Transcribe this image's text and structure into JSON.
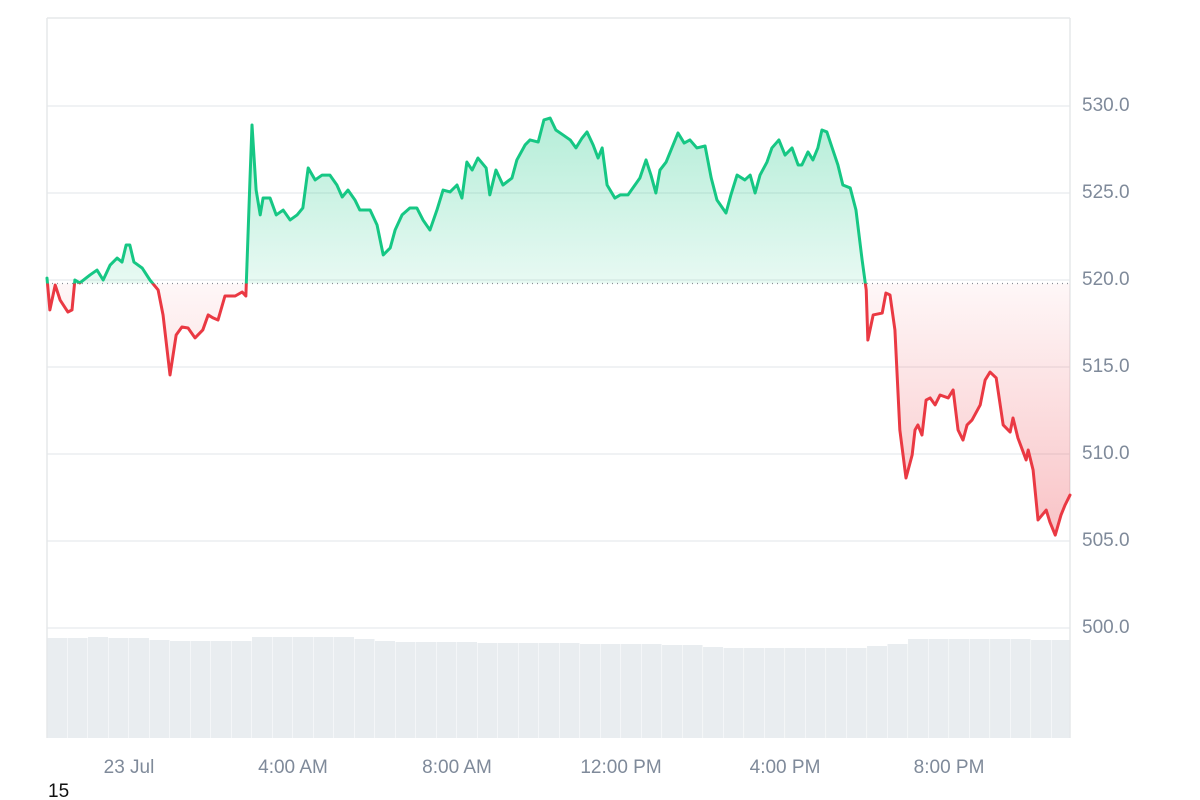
{
  "chart_data": {
    "type": "line",
    "footnote": "15",
    "baseline": 519.8,
    "up_color": "#16c784",
    "down_color": "#ea3943",
    "grid": true,
    "xlim": [
      -2,
      22.95
    ],
    "xticks": [
      {
        "value": 0,
        "label": "23 Jul"
      },
      {
        "value": 4,
        "label": "4:00 AM"
      },
      {
        "value": 8,
        "label": "8:00 AM"
      },
      {
        "value": 12,
        "label": "12:00 PM"
      },
      {
        "value": 16,
        "label": "4:00 PM"
      },
      {
        "value": 20,
        "label": "8:00 PM"
      }
    ],
    "ylim": [
      500,
      535
    ],
    "yticks": [
      {
        "value": 500,
        "label": "500.0"
      },
      {
        "value": 505,
        "label": "505.0"
      },
      {
        "value": 510,
        "label": "510.0"
      },
      {
        "value": 515,
        "label": "515.0"
      },
      {
        "value": 520,
        "label": "520.0"
      },
      {
        "value": 525,
        "label": "525.0"
      },
      {
        "value": 530,
        "label": "530.0"
      }
    ],
    "x": [
      -2.0,
      -1.93,
      -1.8,
      -1.68,
      -1.49,
      -1.39,
      -1.32,
      -1.2,
      -0.95,
      -0.78,
      -0.63,
      -0.46,
      -0.29,
      -0.17,
      -0.07,
      0.02,
      0.12,
      0.32,
      0.51,
      0.71,
      0.83,
      1.0,
      1.15,
      1.29,
      1.44,
      1.61,
      1.8,
      1.93,
      2.05,
      2.17,
      2.34,
      2.59,
      2.76,
      2.85,
      2.95,
      3.0,
      3.1,
      3.2,
      3.27,
      3.44,
      3.59,
      3.76,
      3.93,
      4.1,
      4.24,
      4.37,
      4.54,
      4.71,
      4.9,
      5.07,
      5.2,
      5.34,
      5.51,
      5.63,
      5.88,
      6.05,
      6.2,
      6.37,
      6.49,
      6.66,
      6.85,
      7.02,
      7.17,
      7.34,
      7.51,
      7.66,
      7.83,
      8.0,
      8.12,
      8.24,
      8.37,
      8.51,
      8.71,
      8.8,
      8.95,
      9.12,
      9.34,
      9.46,
      9.66,
      9.78,
      9.98,
      10.12,
      10.27,
      10.41,
      10.59,
      10.76,
      10.9,
      11.05,
      11.17,
      11.32,
      11.44,
      11.54,
      11.66,
      11.85,
      11.98,
      12.17,
      12.34,
      12.46,
      12.61,
      12.73,
      12.85,
      12.95,
      13.1,
      13.24,
      13.39,
      13.54,
      13.68,
      13.85,
      14.05,
      14.2,
      14.34,
      14.56,
      14.68,
      14.83,
      15.02,
      15.15,
      15.27,
      15.39,
      15.56,
      15.68,
      15.85,
      16.0,
      16.17,
      16.32,
      16.41,
      16.56,
      16.68,
      16.8,
      16.9,
      17.02,
      17.15,
      17.29,
      17.41,
      17.59,
      17.73,
      17.88,
      17.98,
      18.02,
      18.15,
      18.37,
      18.46,
      18.56,
      18.68,
      18.8,
      18.95,
      19.1,
      19.17,
      19.24,
      19.34,
      19.44,
      19.54,
      19.66,
      19.78,
      19.98,
      20.1,
      20.22,
      20.34,
      20.44,
      20.56,
      20.76,
      20.88,
      21.0,
      21.15,
      21.32,
      21.49,
      21.56,
      21.68,
      21.88,
      21.93,
      22.05,
      22.17,
      22.37,
      22.46,
      22.59,
      22.73,
      22.83,
      22.95
    ],
    "values": [
      520.11,
      518.28,
      519.71,
      518.85,
      518.16,
      518.28,
      520.0,
      519.83,
      520.29,
      520.57,
      520.0,
      520.86,
      521.26,
      521.03,
      522.01,
      522.01,
      521.03,
      520.69,
      520.0,
      519.43,
      517.99,
      514.54,
      516.84,
      517.3,
      517.24,
      516.67,
      517.13,
      517.99,
      517.82,
      517.7,
      519.08,
      519.08,
      519.31,
      519.08,
      525.75,
      528.91,
      525.17,
      523.74,
      524.71,
      524.71,
      523.74,
      524.02,
      523.45,
      523.74,
      524.14,
      526.44,
      525.75,
      526.03,
      526.03,
      525.46,
      524.77,
      525.17,
      524.6,
      524.02,
      524.02,
      523.16,
      521.44,
      521.84,
      522.87,
      523.74,
      524.14,
      524.14,
      523.45,
      522.87,
      524.02,
      525.17,
      525.06,
      525.46,
      524.71,
      526.78,
      526.32,
      527.01,
      526.44,
      524.89,
      526.32,
      525.46,
      525.86,
      526.9,
      527.76,
      528.05,
      527.93,
      529.2,
      529.31,
      528.62,
      528.33,
      528.05,
      527.59,
      528.16,
      528.51,
      527.76,
      527.01,
      527.59,
      525.46,
      524.71,
      524.89,
      524.89,
      525.46,
      525.86,
      526.9,
      526.03,
      525.0,
      526.32,
      526.78,
      527.59,
      528.45,
      527.87,
      528.05,
      527.59,
      527.7,
      525.86,
      524.6,
      523.85,
      524.89,
      526.03,
      525.75,
      526.03,
      525.0,
      526.03,
      526.78,
      527.59,
      528.05,
      527.18,
      527.59,
      526.61,
      526.61,
      527.36,
      526.9,
      527.59,
      528.62,
      528.51,
      527.59,
      526.61,
      525.46,
      525.29,
      524.02,
      521.15,
      519.43,
      516.55,
      517.99,
      518.1,
      519.25,
      519.14,
      517.13,
      511.38,
      508.62,
      509.94,
      511.38,
      511.67,
      511.09,
      513.1,
      513.22,
      512.82,
      513.39,
      513.22,
      513.68,
      511.38,
      510.8,
      511.67,
      511.95,
      512.82,
      514.25,
      514.71,
      514.37,
      511.67,
      511.26,
      512.07,
      510.92,
      509.66,
      510.23,
      509.08,
      506.21,
      506.78,
      506.09,
      505.34,
      506.49,
      507.07,
      507.64
    ],
    "volume": {
      "color": "#e9edf0",
      "ylim": [
        0,
        110
      ],
      "x": [
        -2,
        -1.5,
        -1,
        -0.5,
        0,
        0.5,
        1,
        1.5,
        2,
        2.5,
        3,
        3.5,
        4,
        4.5,
        5,
        5.5,
        6,
        6.5,
        7,
        7.5,
        8,
        8.5,
        9,
        9.5,
        10,
        10.5,
        11,
        11.5,
        12,
        12.5,
        13,
        13.5,
        14,
        14.5,
        15,
        15.5,
        16,
        16.5,
        17,
        17.5,
        18,
        18.5,
        19,
        19.5,
        20,
        20.5,
        21,
        21.5,
        22,
        22.5
      ],
      "values": [
        100,
        100,
        101,
        100,
        100,
        98,
        97,
        97,
        97,
        97,
        101,
        101,
        101,
        101,
        101,
        99,
        97,
        96,
        96,
        96,
        96,
        95,
        95,
        95,
        95,
        95,
        94,
        94,
        94,
        94,
        93,
        93,
        91,
        90,
        90,
        90,
        90,
        90,
        90,
        90,
        92,
        94,
        99,
        99,
        99,
        99,
        99,
        99,
        98,
        98
      ]
    }
  }
}
